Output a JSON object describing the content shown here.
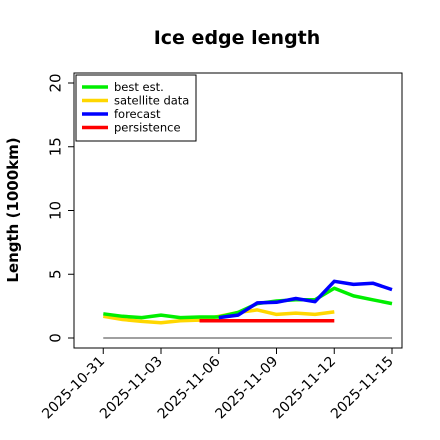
{
  "chart_data": {
    "type": "line",
    "title": "Ice edge length",
    "xlabel": "",
    "ylabel": "Length (1000km)",
    "x_range": [
      "2025-10-30",
      "2025-11-15"
    ],
    "ylim": [
      0,
      20
    ],
    "yticks": [
      0,
      5,
      10,
      15,
      20
    ],
    "xticks": [
      {
        "date": "2025-10-31",
        "label": "2025-10-31",
        "color": "#000000"
      },
      {
        "date": "2025-11-03",
        "label": "2025-11-03",
        "color": "#000000"
      },
      {
        "date": "2025-11-06",
        "label": "2025-11-06",
        "color": "#228b22"
      },
      {
        "date": "2025-11-09",
        "label": "2025-11-09",
        "color": "#000000"
      },
      {
        "date": "2025-11-12",
        "label": "2025-11-12",
        "color": "#000000"
      },
      {
        "date": "2025-11-15",
        "label": "2025-11-15",
        "color": "#000000"
      }
    ],
    "grid": false,
    "legend_position": "top-left",
    "zero_line": {
      "y": 0,
      "x_start": "2025-10-31",
      "x_end": "2025-11-15",
      "color": "#808080"
    },
    "series": [
      {
        "name": "best est.",
        "color": "#00ee00",
        "x": [
          "2025-10-31",
          "2025-11-01",
          "2025-11-02",
          "2025-11-03",
          "2025-11-04",
          "2025-11-05",
          "2025-11-06",
          "2025-11-07",
          "2025-11-08",
          "2025-11-09",
          "2025-11-10",
          "2025-11-11",
          "2025-11-12",
          "2025-11-13",
          "2025-11-14",
          "2025-11-15"
        ],
        "y": [
          1.9,
          1.7,
          1.6,
          1.8,
          1.6,
          1.65,
          1.65,
          2.0,
          2.7,
          2.9,
          3.0,
          3.0,
          3.9,
          3.3,
          3.0,
          2.7
        ]
      },
      {
        "name": "satellite data",
        "color": "#ffd700",
        "x": [
          "2025-10-31",
          "2025-11-01",
          "2025-11-02",
          "2025-11-03",
          "2025-11-04",
          "2025-11-05",
          "2025-11-06",
          "2025-11-07",
          "2025-11-08",
          "2025-11-09",
          "2025-11-10",
          "2025-11-11",
          "2025-11-12"
        ],
        "y": [
          1.7,
          1.45,
          1.3,
          1.2,
          1.35,
          1.4,
          1.7,
          2.0,
          2.2,
          1.85,
          1.95,
          1.85,
          2.05
        ]
      },
      {
        "name": "forecast",
        "color": "#0000ff",
        "x": [
          "2025-11-06",
          "2025-11-07",
          "2025-11-08",
          "2025-11-09",
          "2025-11-10",
          "2025-11-11",
          "2025-11-12",
          "2025-11-13",
          "2025-11-14",
          "2025-11-15"
        ],
        "y": [
          1.6,
          1.8,
          2.75,
          2.8,
          3.1,
          2.85,
          4.45,
          4.2,
          4.3,
          3.8
        ]
      },
      {
        "name": "persistence",
        "color": "#ff0000",
        "x": [
          "2025-11-05",
          "2025-11-12"
        ],
        "y": [
          1.35,
          1.35
        ]
      }
    ]
  }
}
